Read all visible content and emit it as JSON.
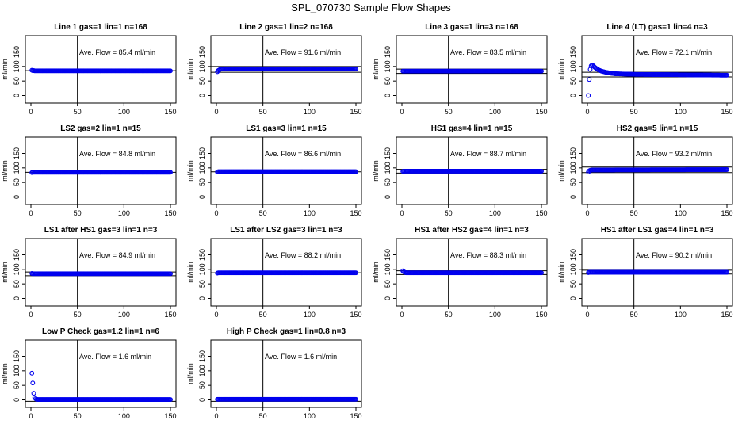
{
  "figure": {
    "title": "SPL_070730  Sample Flow Shapes"
  },
  "colors": {
    "points": "#0000ee",
    "axes": "#000000",
    "lines": "#000000"
  },
  "chart_data": [
    {
      "type": "scatter",
      "title": "Line 1 gas=1 lin=1 n=168",
      "ylabel": "ml/min",
      "xlim": [
        0,
        150
      ],
      "ylim": [
        -15,
        195
      ],
      "xticks": [
        0,
        50,
        100,
        150
      ],
      "yticks": [
        0,
        50,
        100,
        150
      ],
      "annotation": "Ave. Flow =  85.4  ml/min",
      "vline": 50,
      "hlines": [
        85.4
      ],
      "series": [
        {
          "x": [
            1,
            2,
            3,
            4,
            5,
            6,
            8,
            10,
            150
          ],
          "y": [
            87,
            86,
            86,
            85,
            85,
            85,
            85,
            85,
            85
          ]
        }
      ]
    },
    {
      "type": "scatter",
      "title": "Line 2 gas=1 lin=2 n=168",
      "ylabel": "ml/min",
      "xlim": [
        0,
        150
      ],
      "ylim": [
        -15,
        195
      ],
      "xticks": [
        0,
        50,
        100,
        150
      ],
      "yticks": [
        0,
        50,
        100,
        150
      ],
      "annotation": "Ave. Flow =  91.6  ml/min",
      "vline": 50,
      "hlines": [
        100,
        80
      ],
      "series": [
        {
          "x": [
            1,
            2,
            3,
            4,
            5,
            6,
            8,
            10,
            150
          ],
          "y": [
            82,
            86,
            88,
            90,
            91,
            91,
            92,
            92,
            92
          ]
        }
      ]
    },
    {
      "type": "scatter",
      "title": "Line 3 gas=1 lin=3 n=168",
      "ylabel": "ml/min",
      "xlim": [
        0,
        150
      ],
      "ylim": [
        -15,
        195
      ],
      "xticks": [
        0,
        50,
        100,
        150
      ],
      "yticks": [
        0,
        50,
        100,
        150
      ],
      "annotation": "Ave. Flow =  83.5  ml/min",
      "vline": 50,
      "hlines": [
        91,
        76
      ],
      "series": [
        {
          "x": [
            1,
            2,
            3,
            4,
            5,
            6,
            8,
            10,
            150
          ],
          "y": [
            84,
            84,
            84,
            84,
            84,
            84,
            84,
            84,
            84
          ]
        }
      ]
    },
    {
      "type": "scatter",
      "title": "Line 4 (LT) gas=1 lin=4 n=3",
      "ylabel": "ml/min",
      "xlim": [
        0,
        150
      ],
      "ylim": [
        -15,
        195
      ],
      "xticks": [
        0,
        50,
        100,
        150
      ],
      "yticks": [
        0,
        50,
        100,
        150
      ],
      "annotation": "Ave. Flow =  72.1  ml/min",
      "vline": 50,
      "hlines": [
        80,
        64
      ],
      "series": [
        {
          "x": [
            1,
            2,
            3,
            4,
            5,
            6,
            7,
            8,
            10,
            12,
            15,
            20,
            25,
            30,
            40,
            50,
            150
          ],
          "y": [
            0,
            55,
            90,
            102,
            105,
            103,
            100,
            97,
            92,
            88,
            84,
            80,
            77,
            75,
            74,
            73,
            70
          ]
        }
      ]
    },
    {
      "type": "scatter",
      "title": "LS2 gas=2 lin=1 n=15",
      "ylabel": "ml/min",
      "xlim": [
        0,
        150
      ],
      "ylim": [
        -15,
        195
      ],
      "xticks": [
        0,
        50,
        100,
        150
      ],
      "yticks": [
        0,
        50,
        100,
        150
      ],
      "annotation": "Ave. Flow =  84.8  ml/min",
      "vline": 50,
      "hlines": [
        84.8
      ],
      "series": [
        {
          "x": [
            1,
            2,
            3,
            5,
            10,
            150
          ],
          "y": [
            84,
            85,
            85,
            85,
            85,
            85
          ]
        }
      ]
    },
    {
      "type": "scatter",
      "title": "LS1 gas=3 lin=1 n=15",
      "ylabel": "ml/min",
      "xlim": [
        0,
        150
      ],
      "ylim": [
        -15,
        195
      ],
      "xticks": [
        0,
        50,
        100,
        150
      ],
      "yticks": [
        0,
        50,
        100,
        150
      ],
      "annotation": "Ave. Flow =  86.6  ml/min",
      "vline": 50,
      "hlines": [
        86.6
      ],
      "series": [
        {
          "x": [
            1,
            2,
            3,
            5,
            10,
            150
          ],
          "y": [
            86,
            87,
            87,
            87,
            87,
            87
          ]
        }
      ]
    },
    {
      "type": "scatter",
      "title": "HS1 gas=4 lin=1 n=15",
      "ylabel": "ml/min",
      "xlim": [
        0,
        150
      ],
      "ylim": [
        -15,
        195
      ],
      "xticks": [
        0,
        50,
        100,
        150
      ],
      "yticks": [
        0,
        50,
        100,
        150
      ],
      "annotation": "Ave. Flow =  88.7  ml/min",
      "vline": 50,
      "hlines": [
        95,
        82
      ],
      "series": [
        {
          "x": [
            1,
            2,
            3,
            5,
            10,
            150
          ],
          "y": [
            88,
            89,
            89,
            89,
            89,
            89
          ]
        }
      ]
    },
    {
      "type": "scatter",
      "title": "HS2 gas=5 lin=1 n=15",
      "ylabel": "ml/min",
      "xlim": [
        0,
        150
      ],
      "ylim": [
        -15,
        195
      ],
      "xticks": [
        0,
        50,
        100,
        150
      ],
      "yticks": [
        0,
        50,
        100,
        150
      ],
      "annotation": "Ave. Flow =  93.2  ml/min",
      "vline": 50,
      "hlines": [
        103,
        84
      ],
      "series": [
        {
          "x": [
            1,
            2,
            3,
            5,
            10,
            150
          ],
          "y": [
            86,
            90,
            92,
            93,
            93,
            94
          ]
        }
      ]
    },
    {
      "type": "scatter",
      "title": "LS1 after HS1 gas=3 lin=1 n=3",
      "ylabel": "ml/min",
      "xlim": [
        0,
        150
      ],
      "ylim": [
        -15,
        195
      ],
      "xticks": [
        0,
        50,
        100,
        150
      ],
      "yticks": [
        0,
        50,
        100,
        150
      ],
      "annotation": "Ave. Flow =  84.9  ml/min",
      "vline": 50,
      "hlines": [
        91,
        78
      ],
      "series": [
        {
          "x": [
            1,
            2,
            3,
            5,
            10,
            150
          ],
          "y": [
            86,
            85,
            85,
            85,
            85,
            85
          ]
        }
      ]
    },
    {
      "type": "scatter",
      "title": "LS1 after LS2 gas=3 lin=1 n=3",
      "ylabel": "ml/min",
      "xlim": [
        0,
        150
      ],
      "ylim": [
        -15,
        195
      ],
      "xticks": [
        0,
        50,
        100,
        150
      ],
      "yticks": [
        0,
        50,
        100,
        150
      ],
      "annotation": "Ave. Flow =  88.2  ml/min",
      "vline": 50,
      "hlines": [
        88.2
      ],
      "series": [
        {
          "x": [
            1,
            2,
            3,
            5,
            10,
            150
          ],
          "y": [
            87,
            88,
            88,
            88,
            88,
            88
          ]
        }
      ]
    },
    {
      "type": "scatter",
      "title": "HS1 after HS2 gas=4 lin=1 n=3",
      "ylabel": "ml/min",
      "xlim": [
        0,
        150
      ],
      "ylim": [
        -15,
        195
      ],
      "xticks": [
        0,
        50,
        100,
        150
      ],
      "yticks": [
        0,
        50,
        100,
        150
      ],
      "annotation": "Ave. Flow =  88.3  ml/min",
      "vline": 50,
      "hlines": [
        95,
        82
      ],
      "series": [
        {
          "x": [
            1,
            2,
            3,
            5,
            10,
            150
          ],
          "y": [
            95,
            92,
            90,
            88,
            88,
            88
          ]
        }
      ]
    },
    {
      "type": "scatter",
      "title": "HS1 after LS1 gas=4 lin=1 n=3",
      "ylabel": "ml/min",
      "xlim": [
        0,
        150
      ],
      "ylim": [
        -15,
        195
      ],
      "xticks": [
        0,
        50,
        100,
        150
      ],
      "yticks": [
        0,
        50,
        100,
        150
      ],
      "annotation": "Ave. Flow =  90.2  ml/min",
      "vline": 50,
      "hlines": [
        97,
        84
      ],
      "series": [
        {
          "x": [
            1,
            2,
            3,
            5,
            10,
            150
          ],
          "y": [
            89,
            90,
            90,
            90,
            90,
            90
          ]
        }
      ]
    },
    {
      "type": "scatter",
      "title": "Low P Check gas=1.2 lin=1 n=6",
      "ylabel": "ml/min",
      "xlim": [
        0,
        150
      ],
      "ylim": [
        -15,
        195
      ],
      "xticks": [
        0,
        50,
        100,
        150
      ],
      "yticks": [
        0,
        50,
        100,
        150
      ],
      "annotation": "Ave. Flow =  1.6  ml/min",
      "vline": 50,
      "hlines": [
        -5
      ],
      "series": [
        {
          "x": [
            1,
            2,
            3,
            4,
            5,
            6,
            8,
            10,
            150
          ],
          "y": [
            92,
            58,
            23,
            8,
            4,
            2,
            1,
            1,
            1
          ]
        }
      ]
    },
    {
      "type": "scatter",
      "title": "High P Check gas=1 lin=0.8 n=3",
      "ylabel": "ml/min",
      "xlim": [
        0,
        150
      ],
      "ylim": [
        -15,
        195
      ],
      "xticks": [
        0,
        50,
        100,
        150
      ],
      "yticks": [
        0,
        50,
        100,
        150
      ],
      "annotation": "Ave. Flow =  1.6  ml/min",
      "vline": 50,
      "hlines": [
        -5
      ],
      "series": [
        {
          "x": [
            1,
            2,
            3,
            5,
            10,
            150
          ],
          "y": [
            2,
            2,
            2,
            2,
            2,
            2
          ]
        }
      ]
    }
  ]
}
